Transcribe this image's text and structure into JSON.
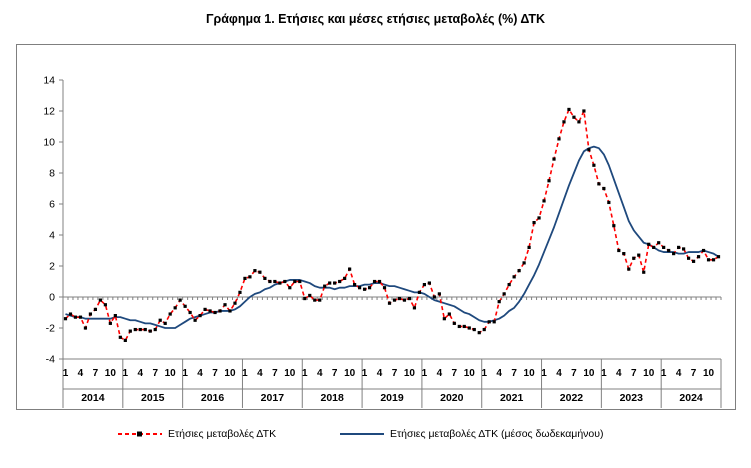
{
  "title": "Γράφημα 1. Ετήσιες και μέσες ετήσιες μεταβολές (%) ΔΤΚ",
  "colors": {
    "annual": "#ff0000",
    "annual_marker": "#000000",
    "average": "#1f497d",
    "axis": "#808080"
  },
  "chart_data": {
    "type": "line",
    "ylim": [
      -4,
      14
    ],
    "yticks": [
      -4,
      -2,
      0,
      2,
      4,
      6,
      8,
      10,
      12,
      14
    ],
    "month_ticks": [
      "1",
      "4",
      "7",
      "10"
    ],
    "years": [
      "2014",
      "2015",
      "2016",
      "2017",
      "2018",
      "2019",
      "2020",
      "2021",
      "2022",
      "2023",
      "2024"
    ],
    "x_start": "2014-01",
    "x_end": "2024-12",
    "grid": false,
    "legend_position": "bottom",
    "series": [
      {
        "name": "Ετήσιες μεταβολές ΔΤΚ",
        "style": "dashed-with-markers",
        "values": [
          -1.4,
          -1.1,
          -1.3,
          -1.3,
          -2.0,
          -1.1,
          -0.8,
          -0.2,
          -0.5,
          -1.7,
          -1.2,
          -2.6,
          -2.8,
          -2.2,
          -2.1,
          -2.1,
          -2.1,
          -2.2,
          -2.1,
          -1.5,
          -1.7,
          -1.1,
          -0.7,
          -0.2,
          -0.6,
          -1.0,
          -1.5,
          -1.2,
          -0.8,
          -0.9,
          -1.0,
          -0.9,
          -0.5,
          -0.9,
          -0.4,
          0.3,
          1.2,
          1.3,
          1.7,
          1.6,
          1.2,
          1.0,
          1.0,
          0.9,
          1.0,
          0.6,
          1.0,
          1.0,
          -0.1,
          0.1,
          -0.2,
          -0.2,
          0.7,
          0.9,
          0.9,
          1.0,
          1.2,
          1.8,
          0.8,
          0.6,
          0.5,
          0.6,
          1.0,
          1.0,
          0.6,
          -0.4,
          -0.2,
          -0.1,
          -0.2,
          -0.1,
          -0.7,
          0.3,
          0.8,
          0.9,
          0.0,
          0.2,
          -1.4,
          -1.1,
          -1.7,
          -1.9,
          -1.9,
          -2.0,
          -2.1,
          -2.3,
          -2.1,
          -1.6,
          -1.6,
          -0.3,
          0.2,
          0.8,
          1.3,
          1.7,
          2.2,
          3.2,
          4.8,
          5.1,
          6.2,
          7.5,
          8.9,
          10.2,
          11.3,
          12.1,
          11.6,
          11.3,
          12.0,
          9.5,
          8.5,
          7.3,
          7.0,
          6.1,
          4.6,
          3.0,
          2.8,
          1.8,
          2.5,
          2.7,
          1.6,
          3.4,
          3.2,
          3.5,
          3.2,
          3.0,
          2.8,
          3.2,
          3.1,
          2.5,
          2.3,
          2.6,
          3.0,
          2.4,
          2.4,
          2.6
        ]
      },
      {
        "name": "Ετήσιες μεταβολές ΔΤΚ (μέσος δωδεκαμήνου)",
        "style": "solid",
        "values": [
          -1.1,
          -1.2,
          -1.3,
          -1.3,
          -1.4,
          -1.4,
          -1.4,
          -1.4,
          -1.4,
          -1.4,
          -1.3,
          -1.3,
          -1.4,
          -1.5,
          -1.5,
          -1.6,
          -1.7,
          -1.7,
          -1.8,
          -1.9,
          -2.0,
          -2.0,
          -2.0,
          -1.8,
          -1.6,
          -1.4,
          -1.3,
          -1.2,
          -1.1,
          -1.0,
          -1.0,
          -0.9,
          -0.9,
          -0.9,
          -0.8,
          -0.6,
          -0.3,
          0.0,
          0.2,
          0.3,
          0.5,
          0.6,
          0.8,
          0.9,
          1.0,
          1.1,
          1.1,
          1.1,
          1.0,
          0.9,
          0.7,
          0.6,
          0.6,
          0.6,
          0.5,
          0.6,
          0.6,
          0.7,
          0.7,
          0.7,
          0.8,
          0.8,
          0.9,
          0.9,
          0.8,
          0.7,
          0.7,
          0.6,
          0.5,
          0.4,
          0.3,
          0.3,
          0.2,
          0.0,
          -0.2,
          -0.3,
          -0.4,
          -0.5,
          -0.6,
          -0.8,
          -1.0,
          -1.1,
          -1.3,
          -1.5,
          -1.6,
          -1.6,
          -1.5,
          -1.4,
          -1.2,
          -0.9,
          -0.7,
          -0.3,
          0.2,
          0.8,
          1.4,
          2.1,
          2.9,
          3.7,
          4.5,
          5.4,
          6.3,
          7.2,
          8.0,
          8.8,
          9.4,
          9.6,
          9.7,
          9.6,
          9.2,
          8.5,
          7.6,
          6.7,
          5.8,
          4.9,
          4.3,
          3.9,
          3.5,
          3.4,
          3.2,
          3.0,
          2.9,
          2.9,
          2.9,
          2.8,
          2.8,
          2.9,
          2.9,
          2.9,
          3.0,
          2.9,
          2.8,
          2.6
        ]
      }
    ]
  }
}
